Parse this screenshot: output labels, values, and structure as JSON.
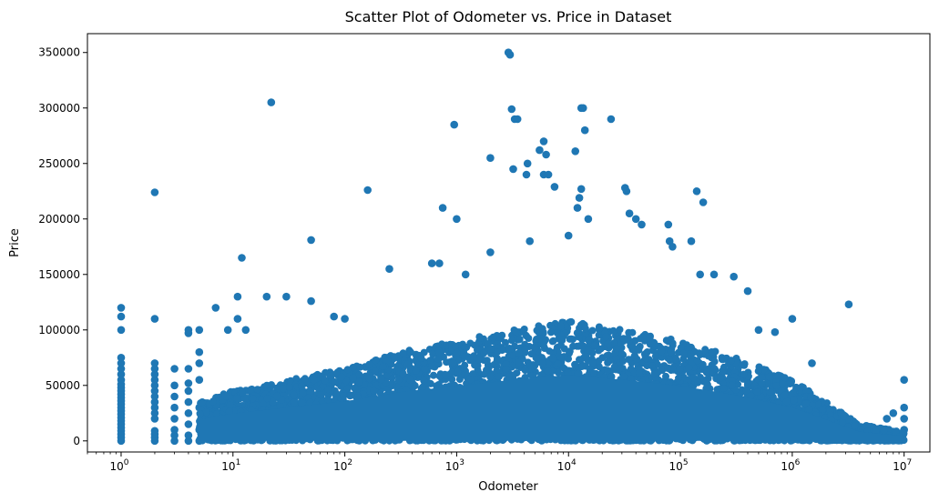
{
  "chart_data": {
    "type": "scatter",
    "title": "Scatter Plot of Odometer vs. Price in Dataset",
    "xlabel": "Odometer",
    "ylabel": "Price",
    "x_scale": "log",
    "xlim": [
      0.5,
      17000000
    ],
    "ylim": [
      -10000,
      367000
    ],
    "x_ticks": [
      {
        "value": 1,
        "base": "10",
        "exp": "0"
      },
      {
        "value": 10,
        "base": "10",
        "exp": "1"
      },
      {
        "value": 100,
        "base": "10",
        "exp": "2"
      },
      {
        "value": 1000,
        "base": "10",
        "exp": "3"
      },
      {
        "value": 10000,
        "base": "10",
        "exp": "4"
      },
      {
        "value": 100000,
        "base": "10",
        "exp": "5"
      },
      {
        "value": 1000000,
        "base": "10",
        "exp": "6"
      },
      {
        "value": 10000000,
        "base": "10",
        "exp": "7"
      }
    ],
    "y_ticks": [
      0,
      50000,
      100000,
      150000,
      200000,
      250000,
      300000,
      350000
    ],
    "y_tick_labels": [
      "0",
      "50000",
      "100000",
      "150000",
      "200000",
      "250000",
      "300000",
      "350000"
    ],
    "grid": false,
    "color": "#1f77b4",
    "series": [
      {
        "points": [
          [
            1,
            0
          ],
          [
            1,
            3000
          ],
          [
            1,
            6000
          ],
          [
            1,
            9000
          ],
          [
            1,
            12000
          ],
          [
            1,
            15000
          ],
          [
            1,
            18000
          ],
          [
            1,
            21000
          ],
          [
            1,
            24000
          ],
          [
            1,
            27000
          ],
          [
            1,
            30000
          ],
          [
            1,
            33000
          ],
          [
            1,
            36000
          ],
          [
            1,
            39000
          ],
          [
            1,
            42000
          ],
          [
            1,
            45000
          ],
          [
            1,
            48000
          ],
          [
            1,
            51000
          ],
          [
            1,
            55000
          ],
          [
            1,
            60000
          ],
          [
            1,
            65000
          ],
          [
            1,
            70000
          ],
          [
            1,
            75000
          ],
          [
            1,
            100000
          ],
          [
            1,
            112000
          ],
          [
            1,
            120000
          ],
          [
            2,
            0
          ],
          [
            2,
            3000
          ],
          [
            2,
            6000
          ],
          [
            2,
            9000
          ],
          [
            2,
            20000
          ],
          [
            2,
            25000
          ],
          [
            2,
            30000
          ],
          [
            2,
            35000
          ],
          [
            2,
            40000
          ],
          [
            2,
            45000
          ],
          [
            2,
            50000
          ],
          [
            2,
            55000
          ],
          [
            2,
            60000
          ],
          [
            2,
            65000
          ],
          [
            2,
            70000
          ],
          [
            2,
            110000
          ],
          [
            2,
            224000
          ],
          [
            3,
            0
          ],
          [
            3,
            5000
          ],
          [
            3,
            10000
          ],
          [
            3,
            20000
          ],
          [
            3,
            30000
          ],
          [
            3,
            40000
          ],
          [
            3,
            50000
          ],
          [
            3,
            65000
          ],
          [
            4,
            0
          ],
          [
            4,
            5000
          ],
          [
            4,
            15000
          ],
          [
            4,
            25000
          ],
          [
            4,
            35000
          ],
          [
            4,
            45000
          ],
          [
            4,
            52000
          ],
          [
            4,
            65000
          ],
          [
            4,
            97000
          ],
          [
            4,
            100000
          ],
          [
            5,
            0
          ],
          [
            5,
            10000
          ],
          [
            5,
            30000
          ],
          [
            5,
            55000
          ],
          [
            5,
            70000
          ],
          [
            5,
            80000
          ],
          [
            5,
            100000
          ],
          [
            7,
            120000
          ],
          [
            9,
            100000
          ],
          [
            11,
            110000
          ],
          [
            11,
            130000
          ],
          [
            12,
            165000
          ],
          [
            13,
            100000
          ],
          [
            20,
            130000
          ],
          [
            22,
            305000
          ],
          [
            30,
            130000
          ],
          [
            50,
            126000
          ],
          [
            50,
            181000
          ],
          [
            80,
            112000
          ],
          [
            100,
            110000
          ],
          [
            160,
            226000
          ],
          [
            250,
            155000
          ],
          [
            600,
            160000
          ],
          [
            700,
            160000
          ],
          [
            750,
            210000
          ],
          [
            950,
            285000
          ],
          [
            1000,
            200000
          ],
          [
            1200,
            150000
          ],
          [
            2000,
            255000
          ],
          [
            2000,
            170000
          ],
          [
            2900,
            350000
          ],
          [
            3000,
            348000
          ],
          [
            3100,
            299000
          ],
          [
            3300,
            290000
          ],
          [
            3500,
            290000
          ],
          [
            3200,
            245000
          ],
          [
            4200,
            240000
          ],
          [
            4500,
            180000
          ],
          [
            4300,
            250000
          ],
          [
            5500,
            262000
          ],
          [
            6000,
            270000
          ],
          [
            6300,
            258000
          ],
          [
            6000,
            240000
          ],
          [
            6600,
            240000
          ],
          [
            7500,
            229000
          ],
          [
            10000,
            185000
          ],
          [
            11500,
            261000
          ],
          [
            12000,
            210000
          ],
          [
            12500,
            219000
          ],
          [
            13000,
            300000
          ],
          [
            13500,
            300000
          ],
          [
            13000,
            227000
          ],
          [
            14000,
            280000
          ],
          [
            15000,
            200000
          ],
          [
            24000,
            290000
          ],
          [
            32000,
            228000
          ],
          [
            33000,
            225000
          ],
          [
            35000,
            205000
          ],
          [
            40000,
            200000
          ],
          [
            45000,
            195000
          ],
          [
            78000,
            195000
          ],
          [
            80000,
            180000
          ],
          [
            85000,
            175000
          ],
          [
            125000,
            180000
          ],
          [
            140000,
            225000
          ],
          [
            160000,
            215000
          ],
          [
            1000000,
            110000
          ],
          [
            1500000,
            70000
          ],
          [
            3200000,
            123000
          ],
          [
            10000000,
            55000
          ],
          [
            10000000,
            30000
          ],
          [
            10000000,
            20000
          ],
          [
            10000000,
            10000
          ],
          [
            8000000,
            25000
          ],
          [
            7000000,
            20000
          ],
          [
            6000000,
            10000
          ],
          [
            5000000,
            5000
          ],
          [
            4000000,
            3000
          ],
          [
            3000000,
            8000
          ],
          [
            150000,
            150000
          ],
          [
            200000,
            150000
          ],
          [
            300000,
            148000
          ],
          [
            400000,
            135000
          ],
          [
            500000,
            100000
          ],
          [
            700000,
            98000
          ]
        ]
      }
    ],
    "density_envelope": {
      "note": "dense cloud of overlapping points",
      "x_decades": [
        0.7,
        1,
        1.5,
        2,
        2.5,
        3,
        3.5,
        4,
        4.5,
        5,
        5.5,
        6,
        6.3,
        6.6,
        7
      ],
      "upper_price": [
        35000,
        45000,
        55000,
        65000,
        80000,
        90000,
        100000,
        108000,
        100000,
        90000,
        75000,
        55000,
        35000,
        15000,
        8000
      ]
    }
  }
}
